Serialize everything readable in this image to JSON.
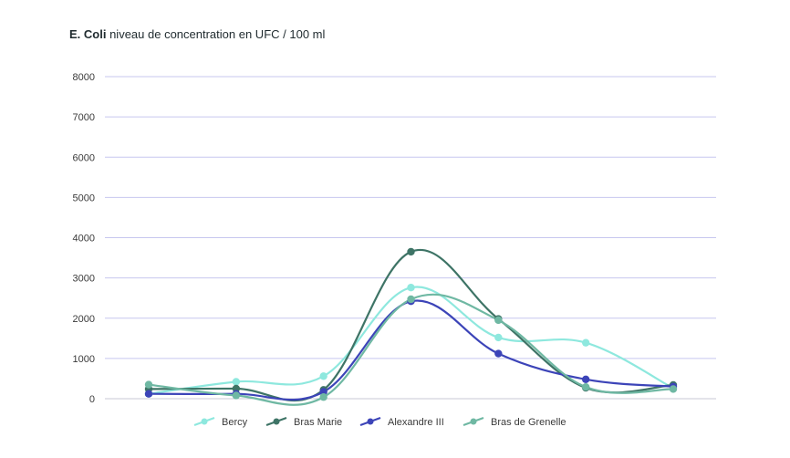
{
  "chart_data": {
    "type": "line",
    "title_bold": "E. Coli",
    "title_rest": "niveau de concentration en UFC / 100 ml",
    "xlabel": "",
    "ylabel": "",
    "ylim": [
      0,
      8000
    ],
    "yticks": [
      0,
      1000,
      2000,
      3000,
      4000,
      5000,
      6000,
      7000,
      8000
    ],
    "grid": true,
    "legend_position": "bottom",
    "x": [
      1,
      2,
      3,
      4,
      5,
      6,
      7
    ],
    "series": [
      {
        "name": "Bercy",
        "color": "#8ee8de",
        "values": [
          120,
          420,
          560,
          2760,
          1520,
          1390,
          260
        ]
      },
      {
        "name": "Bras Marie",
        "color": "#3e7466",
        "values": [
          240,
          250,
          220,
          3650,
          1980,
          270,
          340
        ]
      },
      {
        "name": "Alexandre III",
        "color": "#3c44b8",
        "values": [
          120,
          120,
          170,
          2420,
          1120,
          480,
          300
        ]
      },
      {
        "name": "Bras de Grenelle",
        "color": "#6fb8a3",
        "values": [
          350,
          80,
          40,
          2470,
          1950,
          290,
          240
        ]
      }
    ]
  }
}
